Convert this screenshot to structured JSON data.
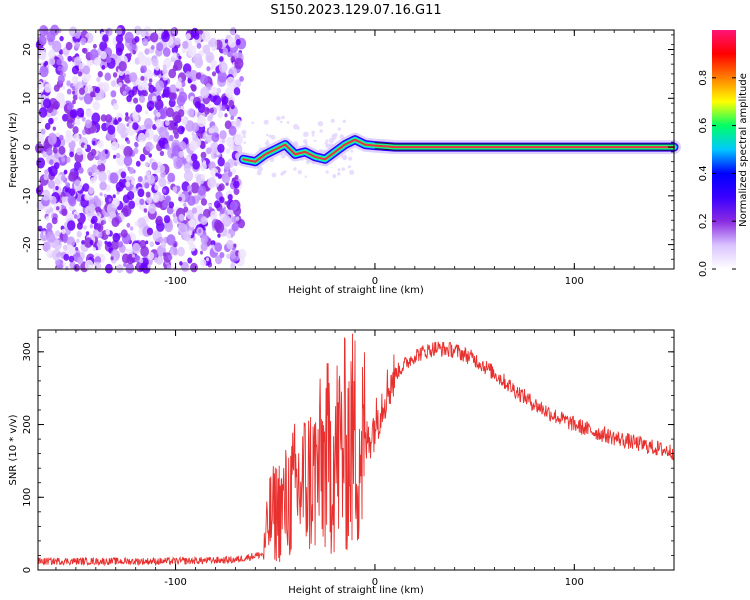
{
  "title": "S150.2023.129.07.16.G11",
  "colors": {
    "snr_line": "#e8302e",
    "ridge": "#e8304a",
    "cmap": [
      "#ffffff",
      "#d9c3ff",
      "#8a2be2",
      "#3a00ff",
      "#0000ff",
      "#00c8ff",
      "#00ff66",
      "#ffff00",
      "#ff8000",
      "#ff0000",
      "#ff1477"
    ]
  },
  "chart_data": [
    {
      "type": "heatmap",
      "title": "S150.2023.129.07.16.G11",
      "xlabel": "Height of straight line (km)",
      "ylabel": "Frequency (Hz)",
      "xlim": [
        -169,
        150
      ],
      "ylim": [
        -25,
        24
      ],
      "xticks": [
        -100,
        0,
        100
      ],
      "yticks": [
        -20,
        -10,
        0,
        10,
        20
      ],
      "noise_region_x": [
        -169,
        -66
      ],
      "ridge": {
        "x": [
          -66,
          -60,
          -55,
          -50,
          -45,
          -40,
          -35,
          -30,
          -25,
          -20,
          -15,
          -10,
          -5,
          0,
          10,
          20,
          40,
          60,
          80,
          100,
          150
        ],
        "y": [
          -2.5,
          -3.0,
          -1.5,
          -0.5,
          0.5,
          -1.5,
          -1.0,
          -2.0,
          -2.5,
          -1.0,
          0.5,
          1.5,
          0.5,
          0.3,
          0.0,
          0.0,
          0.0,
          0.0,
          0.0,
          0.0,
          0.0
        ]
      },
      "colorbar": {
        "label": "Normalized spectral amplitude",
        "range": [
          0,
          1
        ],
        "ticks": [
          "0.0",
          "0.2",
          "0.4",
          "0.6",
          "0.8"
        ]
      }
    },
    {
      "type": "line",
      "xlabel": "Height of straight line (km)",
      "ylabel": "SNR (10 * v/v)",
      "xlim": [
        -169,
        150
      ],
      "ylim": [
        0,
        330
      ],
      "xticks": [
        -100,
        0,
        100
      ],
      "yticks": [
        0,
        100,
        200,
        300
      ],
      "series": [
        {
          "x": [
            -169,
            -150,
            -100,
            -70,
            -56,
            -53,
            -50,
            -45,
            -40,
            -35,
            -30,
            -25,
            -20,
            -15,
            -10,
            -5,
            0,
            5,
            10,
            20,
            30,
            40,
            50,
            60,
            70,
            80,
            90,
            100,
            110,
            120,
            130,
            140,
            150
          ],
          "y": [
            12,
            12,
            12,
            14,
            22,
            70,
            80,
            90,
            110,
            120,
            130,
            150,
            160,
            170,
            180,
            170,
            200,
            240,
            270,
            295,
            305,
            302,
            290,
            270,
            248,
            228,
            212,
            200,
            190,
            182,
            175,
            168,
            162
          ]
        }
      ]
    }
  ]
}
